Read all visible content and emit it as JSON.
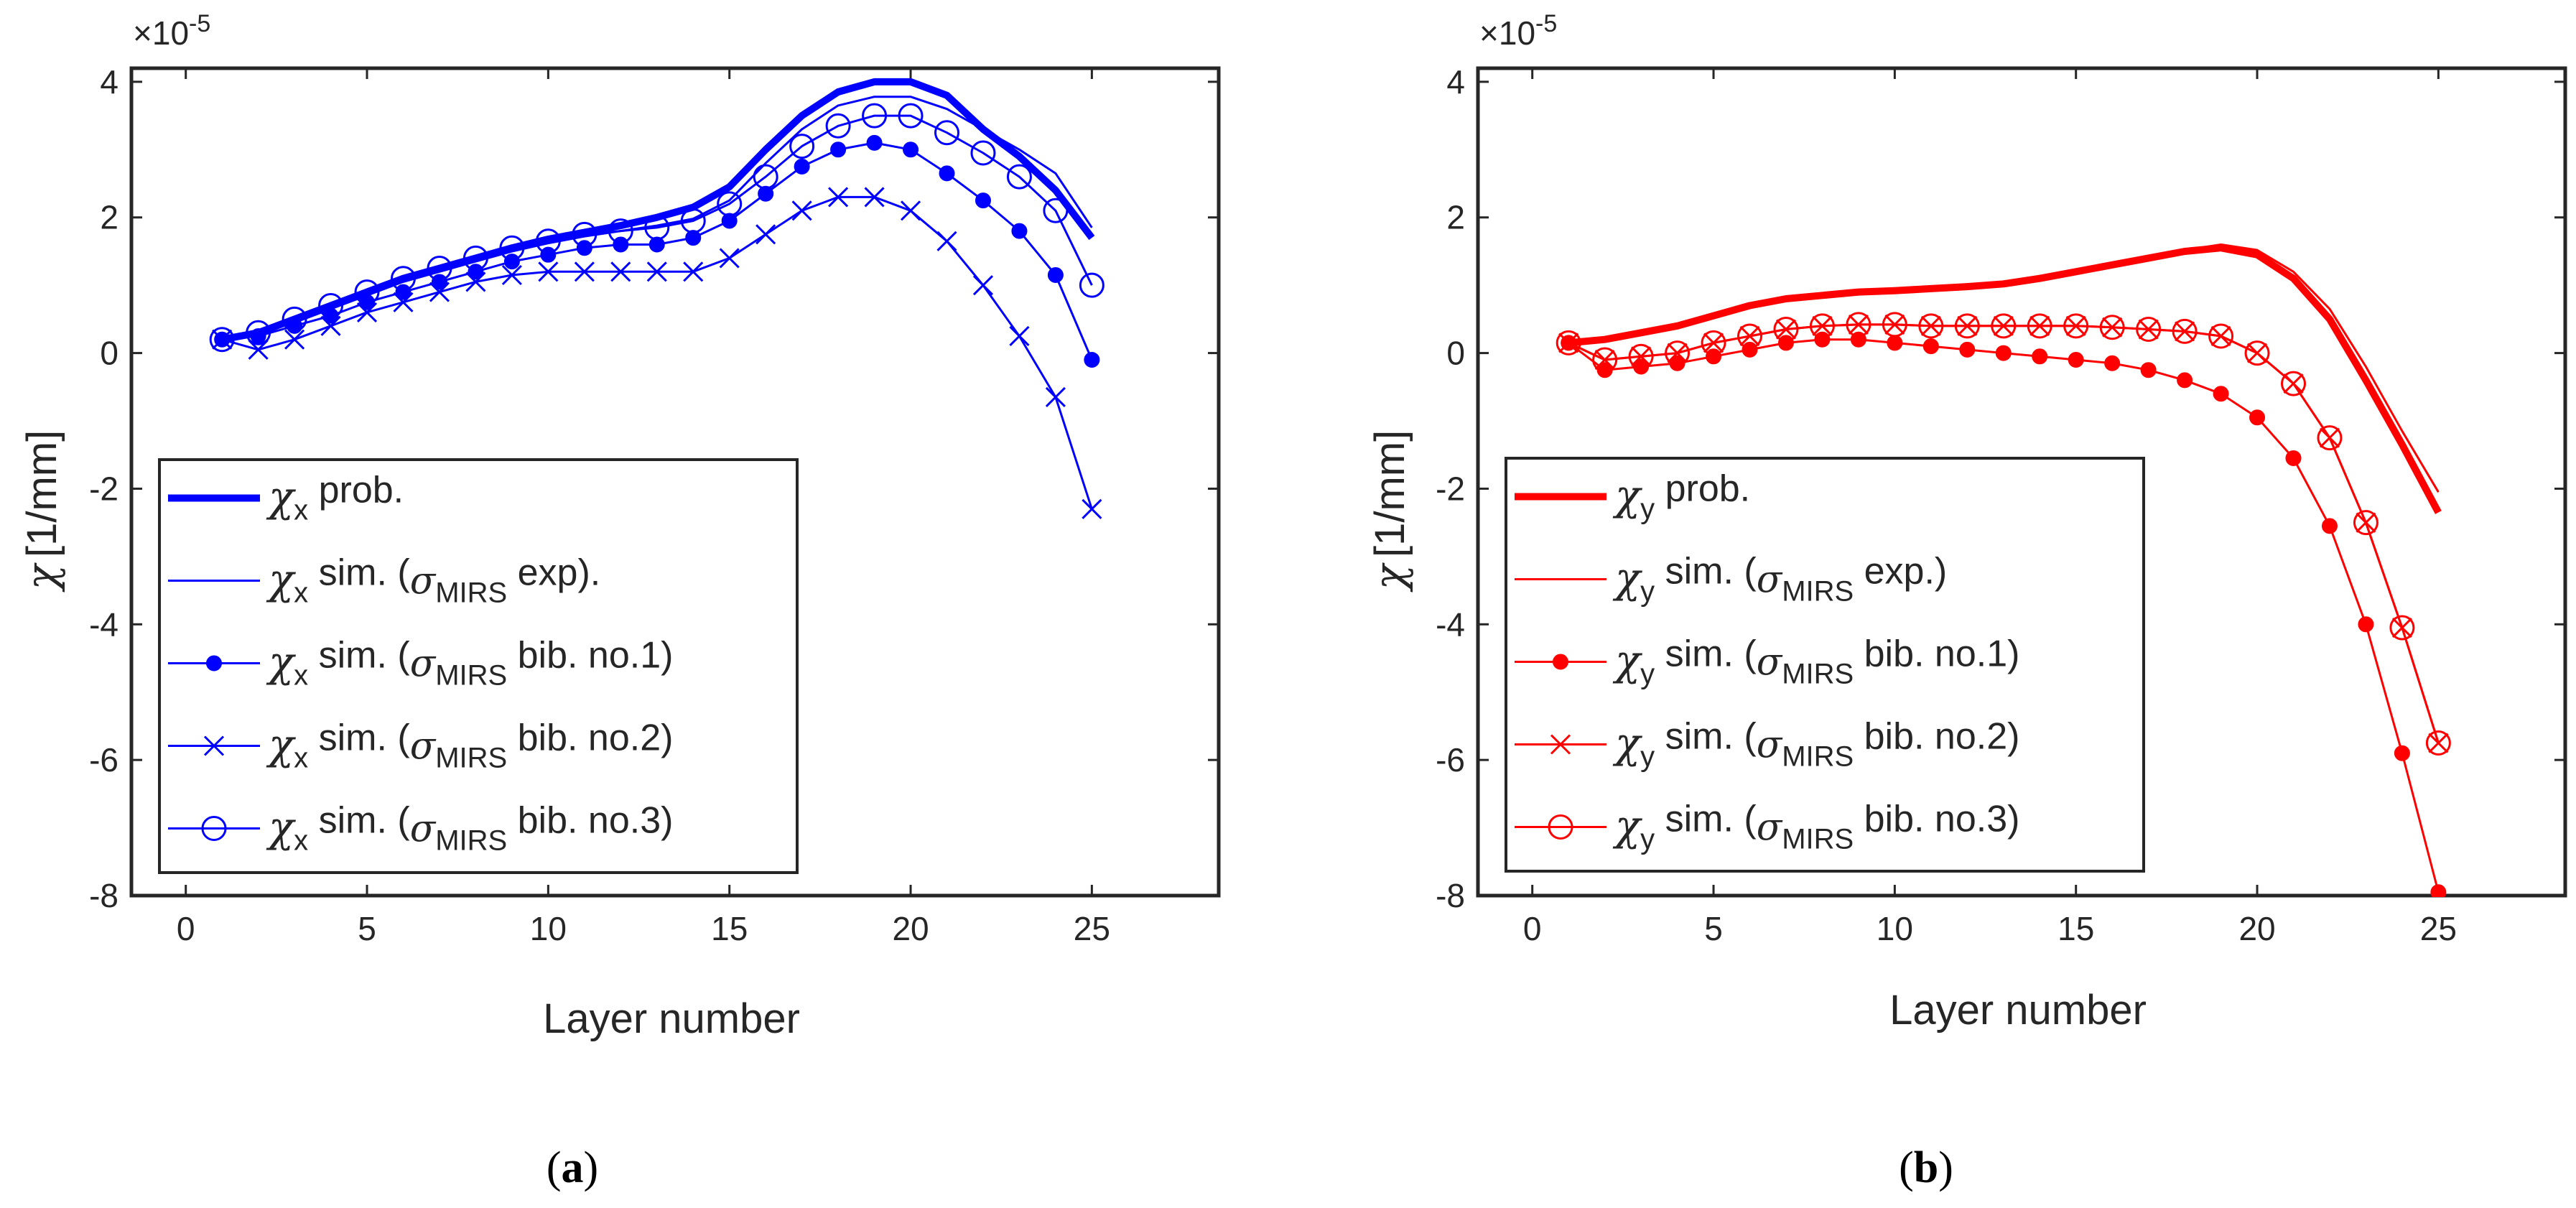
{
  "panels": [
    {
      "id": "a",
      "label": "a",
      "color": "#0000ff",
      "axis_symbol": "χ",
      "axis_unit": "[1/mm]",
      "exponent_base": "×10",
      "exponent_power": "-5",
      "legend": [
        {
          "symbol": "χ",
          "subscript": "x",
          "text1": " prob.",
          "sigma": "",
          "sigma_sub": "",
          "text2": ""
        },
        {
          "symbol": "χ",
          "subscript": "x",
          "text1": " sim. (",
          "sigma": "σ",
          "sigma_sub": "MIRS",
          "text2": " exp)."
        },
        {
          "symbol": "χ",
          "subscript": "x",
          "text1": " sim. (",
          "sigma": "σ",
          "sigma_sub": "MIRS",
          "text2": " bib. no.1)"
        },
        {
          "symbol": "χ",
          "subscript": "x",
          "text1": " sim. (",
          "sigma": "σ",
          "sigma_sub": "MIRS",
          "text2": " bib. no.2)"
        },
        {
          "symbol": "χ",
          "subscript": "x",
          "text1": " sim. (",
          "sigma": "σ",
          "sigma_sub": "MIRS",
          "text2": " bib. no.3)"
        }
      ]
    },
    {
      "id": "b",
      "label": "b",
      "color": "#ff0000",
      "axis_symbol": "χ",
      "axis_unit": "[1/mm]",
      "exponent_base": "×10",
      "exponent_power": "-5",
      "legend": [
        {
          "symbol": "χ",
          "subscript": "y",
          "text1": " prob.",
          "sigma": "",
          "sigma_sub": "",
          "text2": ""
        },
        {
          "symbol": "χ",
          "subscript": "y",
          "text1": " sim. (",
          "sigma": "σ",
          "sigma_sub": "MIRS",
          "text2": " exp.)"
        },
        {
          "symbol": "χ",
          "subscript": "y",
          "text1": " sim. (",
          "sigma": "σ",
          "sigma_sub": "MIRS",
          "text2": " bib. no.1)"
        },
        {
          "symbol": "χ",
          "subscript": "y",
          "text1": " sim. (",
          "sigma": "σ",
          "sigma_sub": "MIRS",
          "text2": " bib. no.2)"
        },
        {
          "symbol": "χ",
          "subscript": "y",
          "text1": " sim. (",
          "sigma": "σ",
          "sigma_sub": "MIRS",
          "text2": " bib. no.3)"
        }
      ]
    }
  ],
  "chart_data": [
    {
      "type": "line",
      "panel": "a",
      "xlabel": "Layer number",
      "ylabel": "χ [1/mm]",
      "y_scale_note": "×10^-5",
      "xlim": [
        -1.5,
        28.5
      ],
      "ylim": [
        -8,
        4.2
      ],
      "xticks": [
        0,
        5,
        10,
        15,
        20,
        25
      ],
      "yticks": [
        -8,
        -6,
        -4,
        -2,
        0,
        2,
        4
      ],
      "x": [
        1,
        2,
        3,
        4,
        5,
        6,
        7,
        8,
        9,
        10,
        11,
        12,
        13,
        14,
        15,
        16,
        17,
        18,
        19,
        20,
        21,
        22,
        23,
        24,
        25
      ],
      "series": [
        {
          "name": "χx prob.",
          "marker": "none",
          "style": "thick",
          "values": [
            0.2,
            0.3,
            0.5,
            0.7,
            0.9,
            1.1,
            1.25,
            1.4,
            1.55,
            1.68,
            1.78,
            1.88,
            2.0,
            2.15,
            2.45,
            3.0,
            3.5,
            3.85,
            4.0,
            4.0,
            3.8,
            3.3,
            2.9,
            2.4,
            1.7
          ]
        },
        {
          "name": "χx sim. (σMIRS exp).",
          "marker": "none",
          "style": "thin",
          "values": [
            0.2,
            0.28,
            0.45,
            0.65,
            0.85,
            1.05,
            1.2,
            1.35,
            1.5,
            1.62,
            1.72,
            1.8,
            1.88,
            1.98,
            2.25,
            2.8,
            3.3,
            3.65,
            3.78,
            3.78,
            3.6,
            3.3,
            3.0,
            2.65,
            1.85
          ]
        },
        {
          "name": "χx sim. (σMIRS bib. no.1)",
          "marker": "dot",
          "style": "thin",
          "values": [
            0.2,
            0.25,
            0.4,
            0.55,
            0.75,
            0.9,
            1.05,
            1.2,
            1.35,
            1.45,
            1.55,
            1.6,
            1.6,
            1.7,
            1.95,
            2.35,
            2.75,
            3.0,
            3.1,
            3.0,
            2.65,
            2.25,
            1.8,
            1.15,
            -0.1
          ]
        },
        {
          "name": "χx sim. (σMIRS bib. no.2)",
          "marker": "x",
          "style": "thin",
          "values": [
            0.2,
            0.05,
            0.2,
            0.4,
            0.6,
            0.75,
            0.9,
            1.05,
            1.15,
            1.2,
            1.2,
            1.2,
            1.2,
            1.2,
            1.4,
            1.75,
            2.1,
            2.3,
            2.3,
            2.1,
            1.65,
            1.0,
            0.25,
            -0.65,
            -2.3
          ]
        },
        {
          "name": "χx sim. (σMIRS bib. no.3)",
          "marker": "circle",
          "style": "thin",
          "values": [
            0.2,
            0.3,
            0.5,
            0.7,
            0.9,
            1.1,
            1.25,
            1.4,
            1.55,
            1.65,
            1.75,
            1.8,
            1.85,
            1.95,
            2.2,
            2.6,
            3.05,
            3.35,
            3.5,
            3.5,
            3.25,
            2.95,
            2.6,
            2.1,
            1.0
          ]
        }
      ]
    },
    {
      "type": "line",
      "panel": "b",
      "xlabel": "Layer number",
      "ylabel": "χ [1/mm]",
      "y_scale_note": "×10^-5",
      "xlim": [
        -1.5,
        28.5
      ],
      "ylim": [
        -8,
        4.2
      ],
      "xticks": [
        0,
        5,
        10,
        15,
        20,
        25
      ],
      "yticks": [
        -8,
        -6,
        -4,
        -2,
        0,
        2,
        4
      ],
      "x": [
        1,
        2,
        3,
        4,
        5,
        6,
        7,
        8,
        9,
        10,
        11,
        12,
        13,
        14,
        15,
        16,
        17,
        18,
        19,
        20,
        21,
        22,
        23,
        24,
        25
      ],
      "series": [
        {
          "name": "χy prob.",
          "marker": "none",
          "style": "thick",
          "values": [
            0.15,
            0.2,
            0.3,
            0.4,
            0.55,
            0.7,
            0.8,
            0.85,
            0.9,
            0.92,
            0.95,
            0.98,
            1.02,
            1.1,
            1.2,
            1.3,
            1.4,
            1.5,
            1.55,
            1.45,
            1.1,
            0.5,
            -0.4,
            -1.35,
            -2.35
          ]
        },
        {
          "name": "χy sim. (σMIRS exp.)",
          "marker": "none",
          "style": "thin",
          "values": [
            0.15,
            0.2,
            0.3,
            0.42,
            0.55,
            0.7,
            0.8,
            0.87,
            0.92,
            0.95,
            0.97,
            1.0,
            1.05,
            1.12,
            1.22,
            1.32,
            1.42,
            1.52,
            1.6,
            1.52,
            1.2,
            0.65,
            -0.2,
            -1.15,
            -2.05
          ]
        },
        {
          "name": "χy sim. (σMIRS bib. no.1)",
          "marker": "dot",
          "style": "thin",
          "values": [
            0.15,
            -0.25,
            -0.2,
            -0.15,
            -0.05,
            0.05,
            0.15,
            0.2,
            0.2,
            0.15,
            0.1,
            0.05,
            0.0,
            -0.05,
            -0.1,
            -0.15,
            -0.25,
            -0.4,
            -0.6,
            -0.95,
            -1.55,
            -2.55,
            -4.0,
            -5.9,
            -7.95
          ]
        },
        {
          "name": "χy sim. (σMIRS bib. no.2)",
          "marker": "x",
          "style": "thin",
          "values": [
            0.15,
            -0.1,
            -0.05,
            0.0,
            0.15,
            0.25,
            0.35,
            0.4,
            0.42,
            0.42,
            0.4,
            0.4,
            0.4,
            0.4,
            0.4,
            0.38,
            0.35,
            0.32,
            0.25,
            0.0,
            -0.45,
            -1.25,
            -2.5,
            -4.05,
            -5.75
          ]
        },
        {
          "name": "χy sim. (σMIRS bib. no.3)",
          "marker": "circle",
          "style": "thin",
          "values": [
            0.15,
            -0.1,
            -0.05,
            0.0,
            0.15,
            0.25,
            0.35,
            0.4,
            0.42,
            0.42,
            0.4,
            0.4,
            0.4,
            0.4,
            0.4,
            0.38,
            0.35,
            0.32,
            0.25,
            0.0,
            -0.45,
            -1.25,
            -2.5,
            -4.05,
            -5.75
          ]
        }
      ]
    }
  ]
}
